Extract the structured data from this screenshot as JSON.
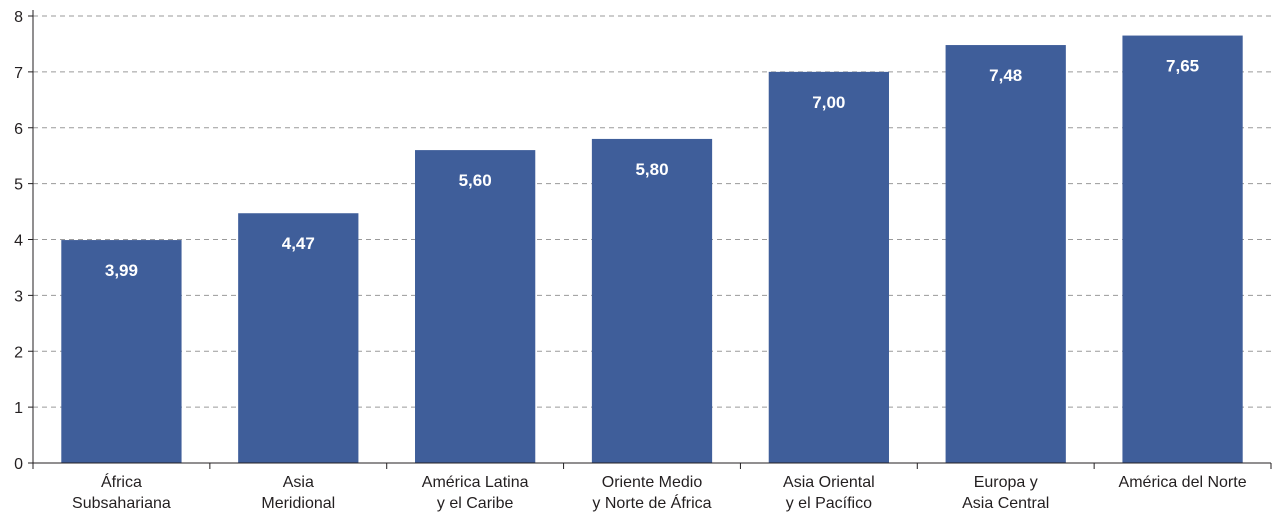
{
  "chart_data": {
    "type": "bar",
    "title": "",
    "xlabel": "",
    "ylabel": "",
    "categories": [
      [
        "África",
        "Subsahariana"
      ],
      [
        "Asia",
        "Meridional"
      ],
      [
        "América Latina",
        "y el Caribe"
      ],
      [
        "Oriente Medio",
        "y Norte de África"
      ],
      [
        "Asia Oriental",
        "y el Pacífico"
      ],
      [
        "Europa y",
        "Asia Central"
      ],
      [
        "América del Norte"
      ]
    ],
    "values": [
      3.99,
      4.47,
      5.6,
      5.8,
      7.0,
      7.48,
      7.65
    ],
    "value_labels": [
      "3,99",
      "4,47",
      "5,60",
      "5,80",
      "7,00",
      "7,48",
      "7,65"
    ],
    "yticks": [
      0,
      1,
      2,
      3,
      4,
      5,
      6,
      7,
      8
    ],
    "ylim": [
      0,
      8
    ],
    "grid": "horizontal dashed",
    "legend": "none",
    "colors": {
      "bar": "#3f5e9a",
      "grid": "#9a9a9a",
      "axis": "#231f20",
      "label": "#ffffff"
    }
  }
}
